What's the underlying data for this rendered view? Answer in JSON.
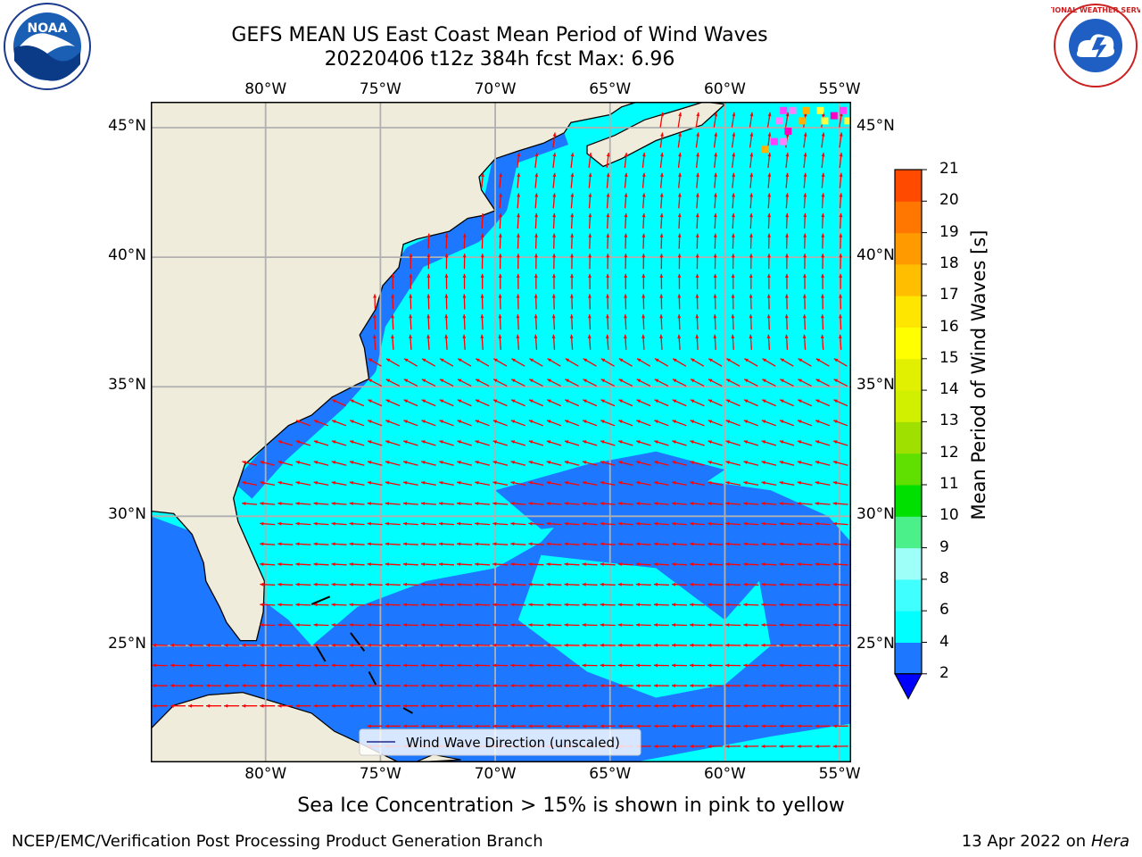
{
  "header": {
    "title": "GEFS MEAN US East Coast Mean Period of Wind Waves",
    "subtitle_run": "20220406 t12z 384h fcst   Max: 6.96"
  },
  "map": {
    "lon_ticks": [
      "80°W",
      "75°W",
      "70°W",
      "65°W",
      "60°W",
      "55°W"
    ],
    "lat_ticks": [
      "45°N",
      "40°N",
      "35°N",
      "30°N",
      "25°N"
    ],
    "extent": {
      "lon_min": -85,
      "lon_max": -54.5,
      "lat_min": 20.5,
      "lat_max": 46
    },
    "colors": {
      "land": "#efecdc",
      "ocean_low": "#1e78ff",
      "ocean_mid": "#00ffff",
      "arrow": "#ff0000",
      "grid": "#b0b0b0",
      "coast": "#000000"
    },
    "legend_label": "Wind Wave Direction (unscaled)"
  },
  "colorbar": {
    "title": "Mean Period of Wind Waves [s]",
    "labels": [
      "2",
      "4",
      "6",
      "8",
      "9",
      "10",
      "11",
      "12",
      "13",
      "14",
      "15",
      "16",
      "17",
      "18",
      "19",
      "20",
      "21"
    ],
    "colors": [
      "#1e78ff",
      "#00ffff",
      "#40ffff",
      "#9dfff8",
      "#4cf08a",
      "#00e000",
      "#60e000",
      "#a0e000",
      "#d0f000",
      "#e0f000",
      "#ffff00",
      "#ffe600",
      "#ffbf00",
      "#ff9a00",
      "#ff7700",
      "#ff4a00",
      "#ff0000"
    ],
    "extend_color": "#0000ff"
  },
  "footer": {
    "sea_ice_note": "Sea Ice Concentration > 15% is shown in pink to yellow",
    "producer": "NCEP/EMC/Verification Post Processing Product Generation Branch",
    "date": "13 Apr 2022 on",
    "host": "Hera"
  },
  "logos": {
    "left": "noaa-logo",
    "right": "nws-logo",
    "left_text": "NOAA",
    "right_text": "NATIONAL WEATHER SERVICE"
  }
}
